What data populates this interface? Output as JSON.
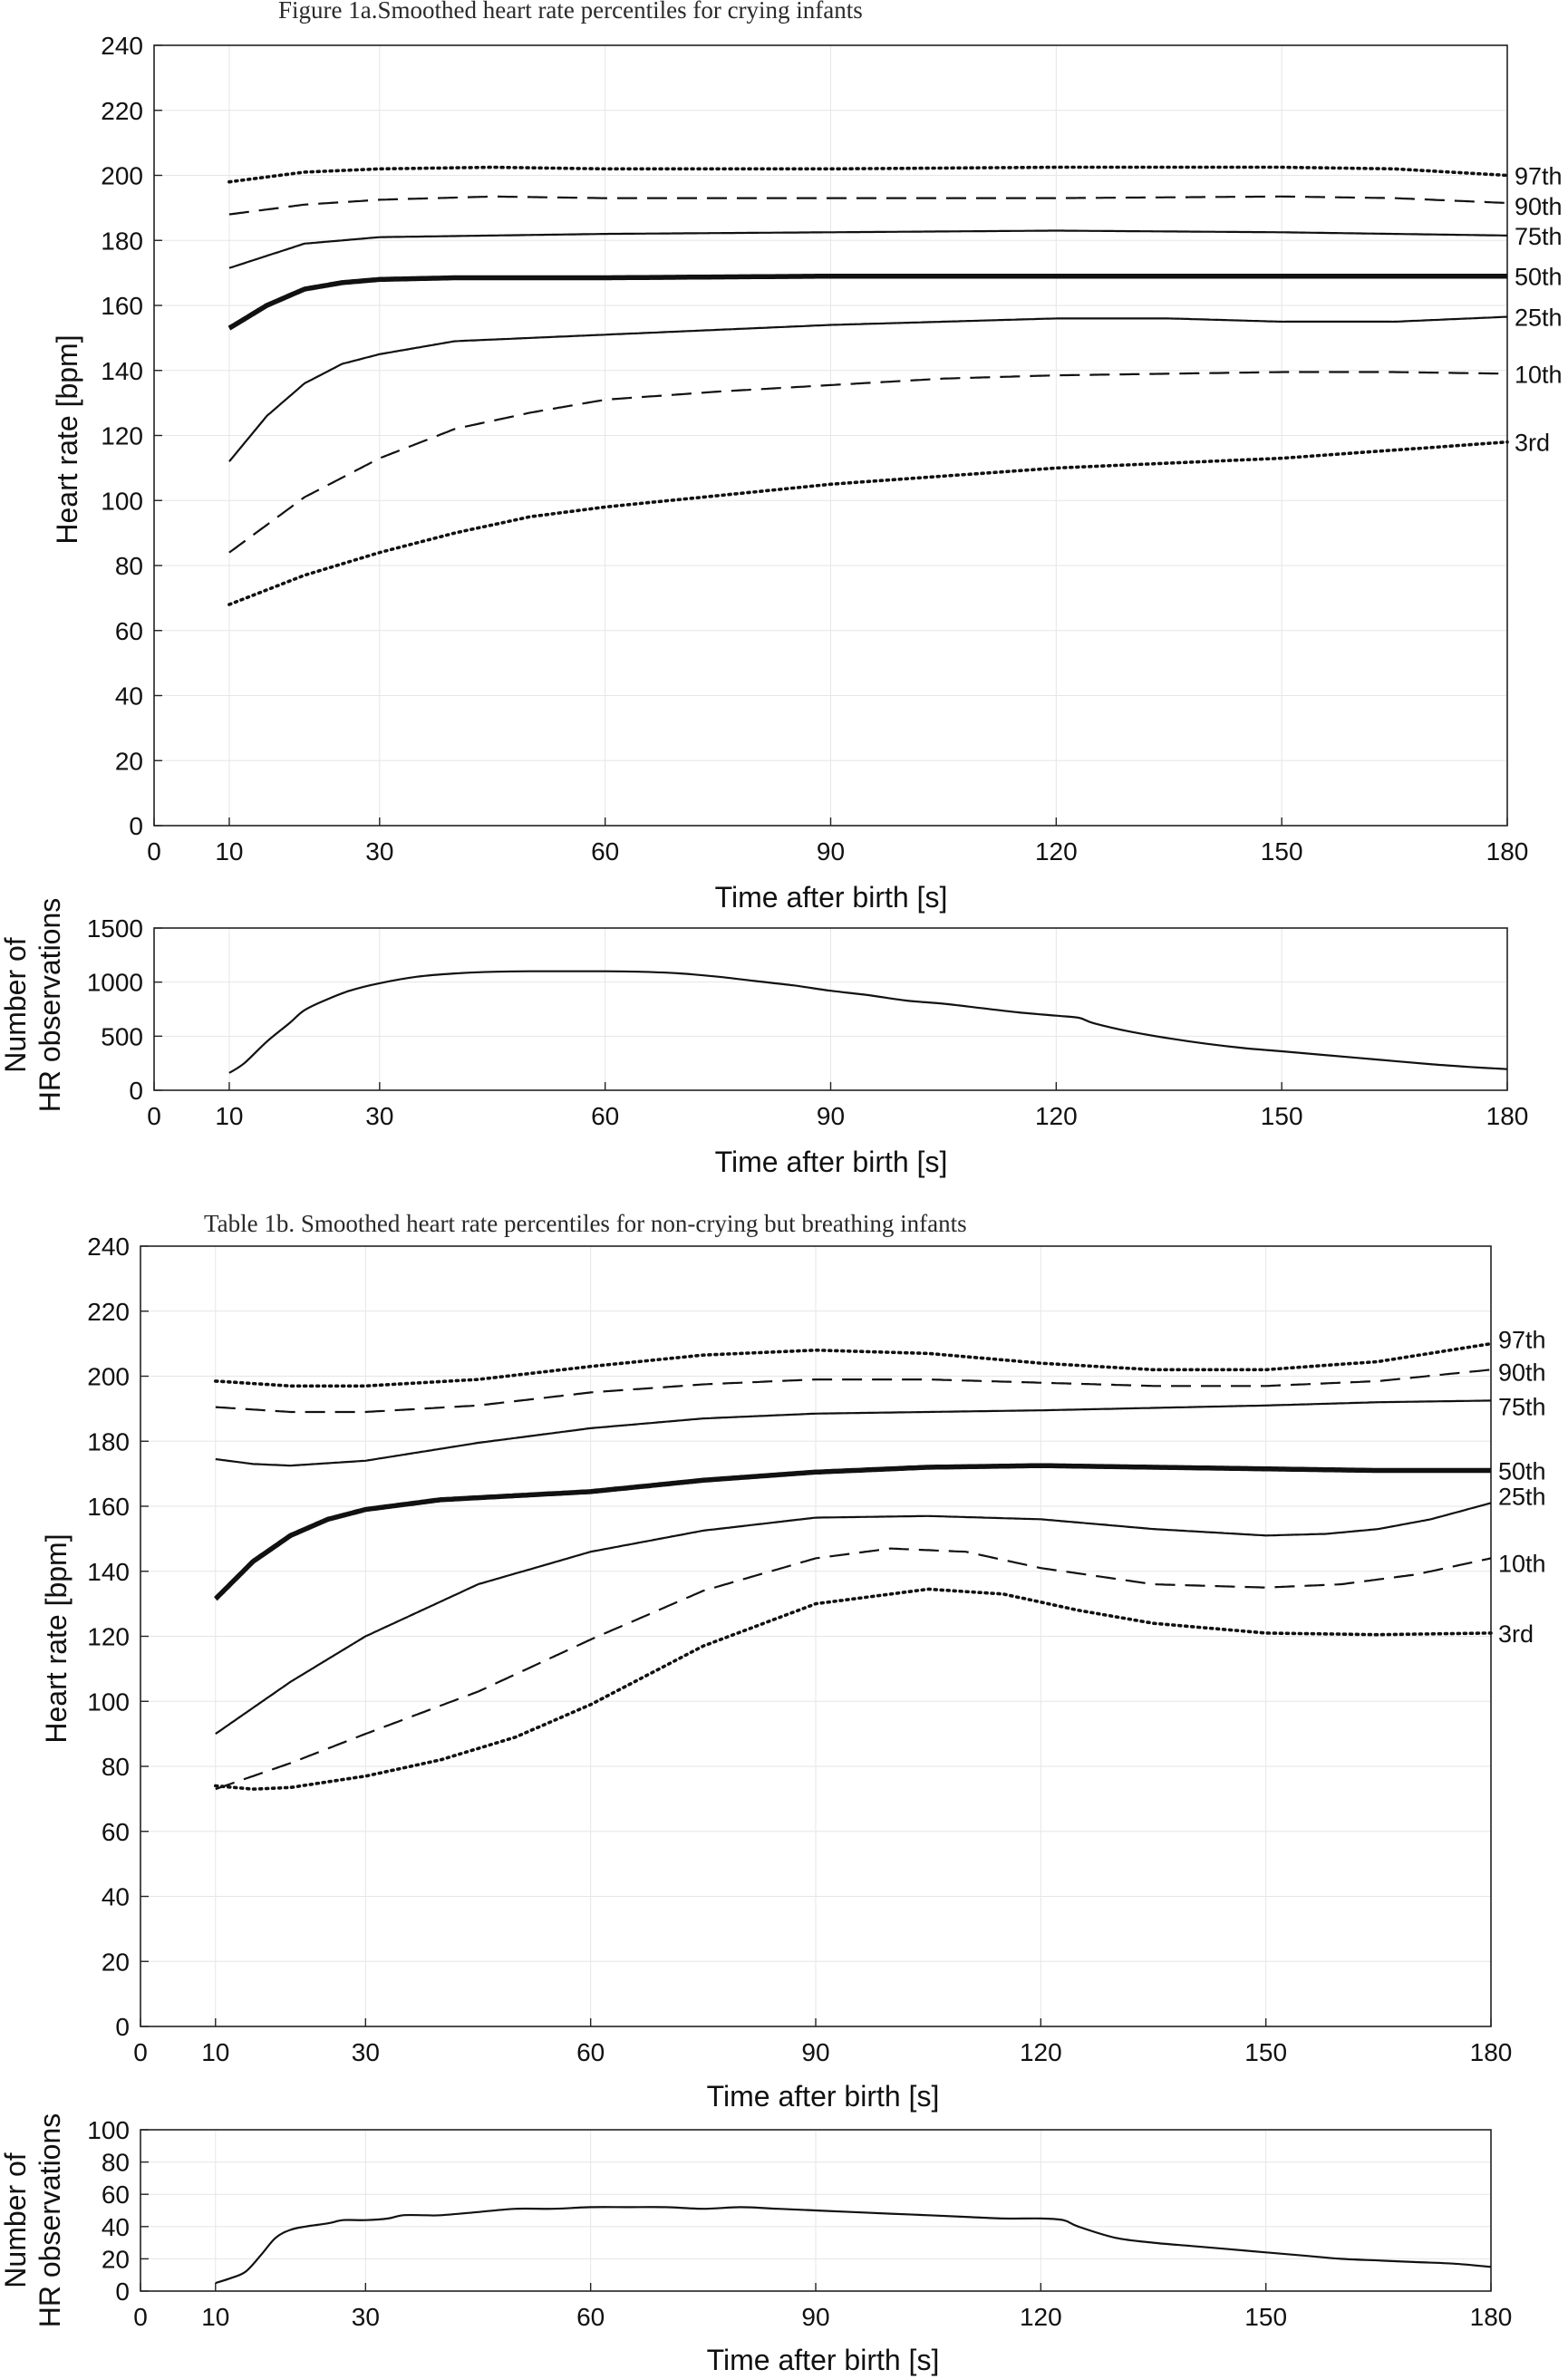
{
  "figure_a": {
    "title": "Figure 1a.Smoothed heart rate percentiles for crying infants",
    "main_ylabel": "Heart rate [bpm]",
    "main_xlabel": "Time after birth [s]",
    "count_ylabel": [
      "Number of",
      "HR observations"
    ],
    "count_xlabel": "Time after birth [s]"
  },
  "figure_b": {
    "title": "Table 1b. Smoothed heart rate percentiles for non-crying but breathing infants",
    "main_ylabel": "Heart rate [bpm]",
    "main_xlabel": "Time after birth [s]",
    "count_ylabel": [
      "Number of",
      "HR observations"
    ],
    "count_xlabel": "Time after birth [s]"
  },
  "chart_data": [
    {
      "type": "line",
      "title": "Figure 1a.Smoothed heart rate percentiles for crying infants",
      "xlabel": "Time after birth [s]",
      "ylabel": "Heart rate [bpm]",
      "xlim": [
        0,
        180
      ],
      "ylim": [
        0,
        240
      ],
      "xticks": [
        0,
        10,
        30,
        60,
        90,
        120,
        150,
        180
      ],
      "yticks": [
        0,
        20,
        40,
        60,
        80,
        100,
        120,
        140,
        160,
        180,
        200,
        220,
        240
      ],
      "grid": true,
      "series": [
        {
          "name": "97th",
          "style": "dotted",
          "x": [
            10,
            20,
            30,
            45,
            60,
            90,
            120,
            150,
            165,
            180
          ],
          "y": [
            198,
            201,
            202,
            202.5,
            202,
            202,
            202.5,
            202.5,
            202,
            200
          ]
        },
        {
          "name": "90th",
          "style": "dashed",
          "x": [
            10,
            20,
            30,
            45,
            60,
            90,
            120,
            150,
            165,
            180
          ],
          "y": [
            188,
            191,
            192.5,
            193.5,
            193,
            193,
            193,
            193.5,
            193,
            191.5
          ]
        },
        {
          "name": "75th",
          "style": "solid",
          "x": [
            10,
            20,
            30,
            45,
            60,
            90,
            120,
            150,
            165,
            180
          ],
          "y": [
            171.5,
            179,
            181,
            181.5,
            182,
            182.5,
            183,
            182.5,
            182,
            181.5
          ]
        },
        {
          "name": "50th",
          "style": "bold",
          "x": [
            10,
            15,
            20,
            25,
            30,
            40,
            60,
            90,
            120,
            150,
            180
          ],
          "y": [
            153,
            160,
            165,
            167,
            168,
            168.5,
            168.5,
            169,
            169,
            169,
            169
          ]
        },
        {
          "name": "25th",
          "style": "solid",
          "x": [
            10,
            15,
            20,
            25,
            30,
            40,
            60,
            90,
            120,
            135,
            150,
            165,
            180
          ],
          "y": [
            112,
            126,
            136,
            142,
            145,
            149,
            151,
            154,
            156,
            156,
            155,
            155,
            156.5
          ]
        },
        {
          "name": "10th",
          "style": "dashed",
          "x": [
            10,
            20,
            30,
            40,
            50,
            60,
            75,
            90,
            105,
            120,
            135,
            150,
            165,
            180
          ],
          "y": [
            84,
            101,
            113,
            122,
            127,
            131,
            133.5,
            135.5,
            137.5,
            138.5,
            139,
            139.5,
            139.5,
            139
          ]
        },
        {
          "name": "3rd",
          "style": "dotted",
          "x": [
            10,
            20,
            30,
            40,
            50,
            60,
            75,
            90,
            105,
            120,
            135,
            150,
            165,
            180
          ],
          "y": [
            68,
            77,
            84,
            90,
            95,
            98,
            101.5,
            105,
            107.5,
            110,
            111.5,
            113,
            115.5,
            118
          ]
        }
      ]
    },
    {
      "type": "line",
      "xlabel": "Time after birth [s]",
      "ylabel": "Number of HR observations",
      "xlim": [
        0,
        180
      ],
      "ylim": [
        0,
        1500
      ],
      "xticks": [
        0,
        10,
        30,
        60,
        90,
        120,
        150,
        180
      ],
      "yticks": [
        0,
        500,
        1000,
        1500
      ],
      "grid": true,
      "series": [
        {
          "x": [
            10,
            12,
            15,
            18,
            20,
            23,
            26,
            30,
            35,
            40,
            45,
            50,
            55,
            60,
            65,
            70,
            75,
            80,
            85,
            90,
            95,
            100,
            105,
            110,
            115,
            120,
            123,
            125,
            130,
            135,
            140,
            145,
            150,
            155,
            160,
            165,
            170,
            175,
            180
          ],
          "y": [
            160,
            250,
            450,
            620,
            740,
            840,
            920,
            990,
            1050,
            1080,
            1095,
            1100,
            1100,
            1100,
            1095,
            1080,
            1050,
            1010,
            970,
            920,
            880,
            830,
            800,
            760,
            720,
            690,
            670,
            620,
            540,
            480,
            430,
            390,
            360,
            330,
            300,
            270,
            240,
            215,
            195
          ]
        }
      ]
    },
    {
      "type": "line",
      "title": "Table 1b. Smoothed heart rate percentiles for non-crying but breathing infants",
      "xlabel": "Time after birth [s]",
      "ylabel": "Heart rate [bpm]",
      "xlim": [
        0,
        180
      ],
      "ylim": [
        0,
        240
      ],
      "xticks": [
        0,
        10,
        30,
        60,
        90,
        120,
        150,
        180
      ],
      "yticks": [
        0,
        20,
        40,
        60,
        80,
        100,
        120,
        140,
        160,
        180,
        200,
        220,
        240
      ],
      "grid": true,
      "series": [
        {
          "name": "97th",
          "style": "dotted",
          "x": [
            10,
            20,
            30,
            45,
            60,
            75,
            90,
            105,
            120,
            135,
            150,
            165,
            180
          ],
          "y": [
            198.5,
            197,
            197,
            199,
            203,
            206.5,
            208,
            207,
            204,
            202,
            202,
            204.5,
            210
          ]
        },
        {
          "name": "90th",
          "style": "dashed",
          "x": [
            10,
            20,
            30,
            45,
            60,
            75,
            90,
            105,
            120,
            135,
            150,
            165,
            180
          ],
          "y": [
            190.5,
            189,
            189,
            191,
            195,
            197.5,
            199,
            199,
            198,
            197,
            197,
            198.5,
            202
          ]
        },
        {
          "name": "75th",
          "style": "solid",
          "x": [
            10,
            15,
            20,
            30,
            45,
            60,
            75,
            90,
            120,
            150,
            165,
            180
          ],
          "y": [
            174.5,
            173,
            172.5,
            174,
            179.5,
            184,
            187,
            188.5,
            189.5,
            191,
            192,
            192.5
          ]
        },
        {
          "name": "50th",
          "style": "bold",
          "x": [
            10,
            15,
            20,
            25,
            30,
            40,
            60,
            75,
            90,
            105,
            120,
            135,
            150,
            165,
            180
          ],
          "y": [
            131.5,
            143,
            151,
            156,
            159,
            162,
            164.5,
            168,
            170.5,
            172,
            172.5,
            172,
            171.5,
            171,
            171
          ]
        },
        {
          "name": "25th",
          "style": "solid",
          "x": [
            10,
            20,
            30,
            45,
            60,
            75,
            90,
            105,
            120,
            135,
            150,
            158,
            165,
            172,
            180
          ],
          "y": [
            90,
            106,
            120,
            136,
            146,
            152.5,
            156.5,
            157,
            156,
            153,
            151,
            151.5,
            153,
            156,
            161
          ]
        },
        {
          "name": "10th",
          "style": "dashed",
          "x": [
            10,
            20,
            30,
            45,
            60,
            75,
            90,
            100,
            110,
            120,
            135,
            150,
            160,
            170,
            180
          ],
          "y": [
            73,
            81,
            90,
            103,
            119,
            134,
            144,
            147,
            146,
            141,
            136,
            135,
            136,
            139,
            144
          ]
        },
        {
          "name": "3rd",
          "style": "dotted",
          "x": [
            10,
            15,
            20,
            30,
            40,
            50,
            60,
            75,
            90,
            105,
            115,
            125,
            135,
            150,
            165,
            180
          ],
          "y": [
            74,
            73,
            73.5,
            77,
            82,
            89,
            99,
            117,
            130,
            134.5,
            133,
            128,
            124,
            121,
            120.5,
            121
          ]
        }
      ]
    },
    {
      "type": "line",
      "xlabel": "Time after birth [s]",
      "ylabel": "Number of HR observations",
      "xlim": [
        0,
        180
      ],
      "ylim": [
        0,
        100
      ],
      "xticks": [
        0,
        10,
        30,
        60,
        90,
        120,
        150,
        180
      ],
      "yticks": [
        0,
        20,
        40,
        60,
        80,
        100
      ],
      "grid": true,
      "series": [
        {
          "x": [
            10,
            12,
            14,
            16,
            18,
            20,
            22,
            25,
            27,
            30,
            33,
            35,
            38,
            40,
            45,
            50,
            55,
            60,
            65,
            70,
            75,
            80,
            85,
            90,
            95,
            100,
            105,
            110,
            115,
            120,
            123,
            125,
            130,
            135,
            140,
            145,
            150,
            155,
            160,
            165,
            170,
            175,
            180
          ],
          "y": [
            5,
            8,
            12,
            22,
            33,
            38,
            40,
            42,
            44,
            44,
            45,
            47,
            47,
            47,
            49,
            51,
            51,
            52,
            52,
            52,
            51,
            52,
            51,
            50,
            49,
            48,
            47,
            46,
            45,
            45,
            44,
            40,
            33,
            30,
            28,
            26,
            24,
            22,
            20,
            19,
            18,
            17,
            15
          ]
        }
      ]
    }
  ]
}
